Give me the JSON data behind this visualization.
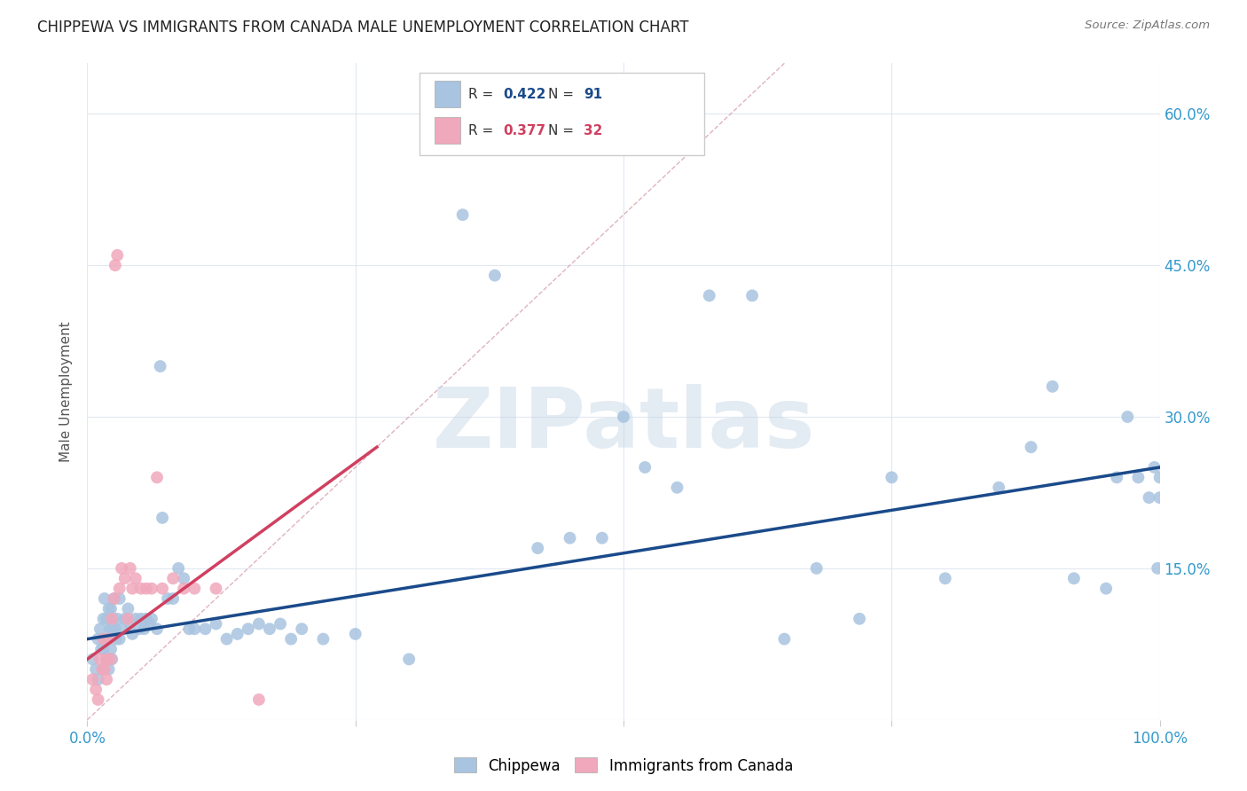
{
  "title": "CHIPPEWA VS IMMIGRANTS FROM CANADA MALE UNEMPLOYMENT CORRELATION CHART",
  "source": "Source: ZipAtlas.com",
  "ylabel": "Male Unemployment",
  "xlim": [
    0.0,
    1.0
  ],
  "ylim": [
    0.0,
    0.65
  ],
  "xticks": [
    0.0,
    0.25,
    0.5,
    0.75,
    1.0
  ],
  "xticklabels": [
    "0.0%",
    "",
    "",
    "",
    "100.0%"
  ],
  "yticks": [
    0.0,
    0.15,
    0.3,
    0.45,
    0.6
  ],
  "yticklabels_left": [
    "",
    "",
    "",
    "",
    ""
  ],
  "yticklabels_right": [
    "",
    "15.0%",
    "30.0%",
    "45.0%",
    "60.0%"
  ],
  "legend_labels": [
    "Chippewa",
    "Immigrants from Canada"
  ],
  "blue_R": 0.422,
  "blue_N": 91,
  "pink_R": 0.377,
  "pink_N": 32,
  "blue_color": "#a8c4e0",
  "pink_color": "#f0a8bc",
  "blue_line_color": "#1a4a8a",
  "pink_line_color": "#d04060",
  "diagonal_color": "#d8a0b0",
  "watermark_text": "ZIPatlas",
  "watermark_color": "#c8d8e8",
  "background_color": "#ffffff",
  "grid_color": "#e0e8f0",
  "blue_x": [
    0.005,
    0.008,
    0.01,
    0.01,
    0.012,
    0.013,
    0.015,
    0.015,
    0.015,
    0.016,
    0.017,
    0.018,
    0.018,
    0.019,
    0.02,
    0.02,
    0.02,
    0.021,
    0.022,
    0.022,
    0.023,
    0.023,
    0.024,
    0.025,
    0.026,
    0.027,
    0.028,
    0.03,
    0.03,
    0.032,
    0.035,
    0.038,
    0.04,
    0.042,
    0.045,
    0.048,
    0.05,
    0.053,
    0.055,
    0.058,
    0.06,
    0.065,
    0.068,
    0.07,
    0.075,
    0.08,
    0.085,
    0.09,
    0.095,
    0.1,
    0.11,
    0.12,
    0.13,
    0.14,
    0.15,
    0.16,
    0.17,
    0.18,
    0.19,
    0.2,
    0.22,
    0.25,
    0.3,
    0.35,
    0.38,
    0.42,
    0.45,
    0.48,
    0.5,
    0.52,
    0.55,
    0.58,
    0.62,
    0.65,
    0.68,
    0.72,
    0.75,
    0.8,
    0.85,
    0.88,
    0.9,
    0.92,
    0.95,
    0.96,
    0.97,
    0.98,
    0.99,
    0.995,
    0.998,
    1.0,
    1.0
  ],
  "blue_y": [
    0.06,
    0.05,
    0.08,
    0.04,
    0.09,
    0.07,
    0.1,
    0.07,
    0.05,
    0.12,
    0.08,
    0.1,
    0.06,
    0.08,
    0.11,
    0.08,
    0.05,
    0.09,
    0.11,
    0.07,
    0.09,
    0.06,
    0.1,
    0.12,
    0.09,
    0.08,
    0.1,
    0.12,
    0.08,
    0.09,
    0.1,
    0.11,
    0.095,
    0.085,
    0.1,
    0.09,
    0.1,
    0.09,
    0.1,
    0.095,
    0.1,
    0.09,
    0.35,
    0.2,
    0.12,
    0.12,
    0.15,
    0.14,
    0.09,
    0.09,
    0.09,
    0.095,
    0.08,
    0.085,
    0.09,
    0.095,
    0.09,
    0.095,
    0.08,
    0.09,
    0.08,
    0.085,
    0.06,
    0.5,
    0.44,
    0.17,
    0.18,
    0.18,
    0.3,
    0.25,
    0.23,
    0.42,
    0.42,
    0.08,
    0.15,
    0.1,
    0.24,
    0.14,
    0.23,
    0.27,
    0.33,
    0.14,
    0.13,
    0.24,
    0.3,
    0.24,
    0.22,
    0.25,
    0.15,
    0.24,
    0.22
  ],
  "pink_x": [
    0.005,
    0.008,
    0.01,
    0.012,
    0.014,
    0.015,
    0.016,
    0.018,
    0.018,
    0.02,
    0.022,
    0.023,
    0.025,
    0.026,
    0.028,
    0.03,
    0.032,
    0.035,
    0.038,
    0.04,
    0.042,
    0.045,
    0.05,
    0.055,
    0.06,
    0.065,
    0.07,
    0.08,
    0.09,
    0.1,
    0.12,
    0.16
  ],
  "pink_y": [
    0.04,
    0.03,
    0.02,
    0.06,
    0.05,
    0.08,
    0.05,
    0.06,
    0.04,
    0.08,
    0.06,
    0.1,
    0.12,
    0.45,
    0.46,
    0.13,
    0.15,
    0.14,
    0.1,
    0.15,
    0.13,
    0.14,
    0.13,
    0.13,
    0.13,
    0.24,
    0.13,
    0.14,
    0.13,
    0.13,
    0.13,
    0.02
  ]
}
